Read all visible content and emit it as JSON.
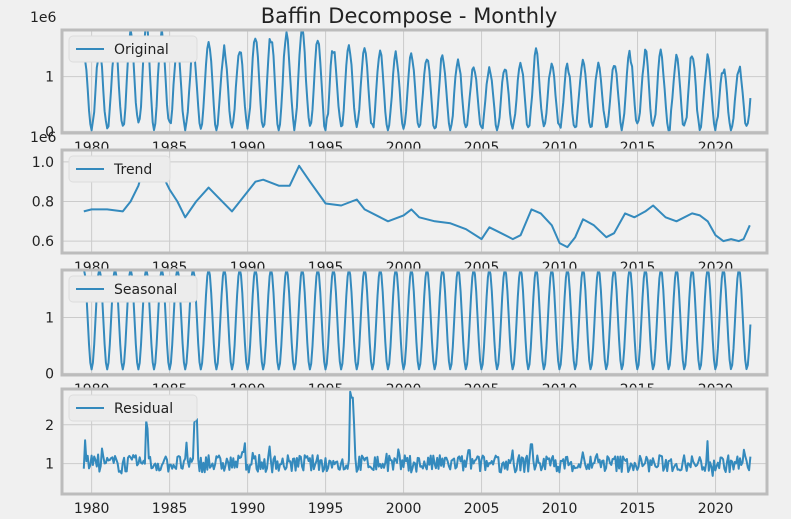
{
  "chart_data": {
    "type": "line",
    "title": "Baffin Decompose - Monthly",
    "colors": {
      "line": "#348ABD",
      "axes_bg": "#f0f0f0",
      "grid": "#cbcbcb",
      "frame": "#bcbcbc",
      "figure_bg": "#f0f0f0"
    },
    "x_ticks": [
      1980,
      1985,
      1990,
      1995,
      2000,
      2005,
      2010,
      2015,
      2020
    ],
    "x_tick_labels": [
      "1980",
      "1985",
      "1990",
      "1995",
      "2000",
      "2005",
      "2010",
      "2015",
      "2020"
    ],
    "xlim": [
      1978.1,
      2023.3
    ],
    "panels": [
      {
        "name": "original",
        "legend": "Original",
        "offset_label": "1e6",
        "ylim": [
          -0.03,
          1.85
        ],
        "y_ticks": [
          0,
          1
        ],
        "y_tick_labels": [
          "0",
          "1"
        ],
        "generator": "seasonal",
        "start": 1979.5,
        "end": 2022.3,
        "step": 0.0833,
        "trend_keys": [
          [
            1979.5,
            0.75
          ],
          [
            1981,
            0.76
          ],
          [
            1983,
            0.98
          ],
          [
            1984,
            1.02
          ],
          [
            1985,
            0.86
          ],
          [
            1986,
            0.72
          ],
          [
            1987.5,
            0.87
          ],
          [
            1989,
            0.75
          ],
          [
            1990.5,
            0.9
          ],
          [
            1992,
            0.88
          ],
          [
            1993.3,
            0.98
          ],
          [
            1995,
            0.79
          ],
          [
            1997,
            0.81
          ],
          [
            1999,
            0.7
          ],
          [
            2000.5,
            0.75
          ],
          [
            2003,
            0.69
          ],
          [
            2005,
            0.61
          ],
          [
            2007,
            0.61
          ],
          [
            2008.5,
            0.75
          ],
          [
            2010,
            0.59
          ],
          [
            2011.5,
            0.7
          ],
          [
            2013,
            0.62
          ],
          [
            2014.2,
            0.73
          ],
          [
            2016,
            0.76
          ],
          [
            2017,
            0.7
          ],
          [
            2018.5,
            0.73
          ],
          [
            2019.5,
            0.69
          ],
          [
            2020.5,
            0.6
          ],
          [
            2021.5,
            0.6
          ],
          [
            2022.3,
            0.68
          ]
        ],
        "amplitude": 1.25
      },
      {
        "name": "trend",
        "legend": "Trend",
        "offset_label": "1e6",
        "ylim": [
          0.54,
          1.06
        ],
        "y_ticks": [
          0.6,
          0.8,
          1.0
        ],
        "y_tick_labels": [
          "0.6",
          "0.8",
          "1.0"
        ],
        "generator": "keys",
        "points": [
          [
            1979.5,
            0.75
          ],
          [
            1980,
            0.76
          ],
          [
            1981,
            0.76
          ],
          [
            1982,
            0.75
          ],
          [
            1982.5,
            0.8
          ],
          [
            1983,
            0.88
          ],
          [
            1983.5,
            1.02
          ],
          [
            1984,
            1.02
          ],
          [
            1985,
            0.86
          ],
          [
            1985.5,
            0.8
          ],
          [
            1986,
            0.72
          ],
          [
            1986.7,
            0.8
          ],
          [
            1987.5,
            0.87
          ],
          [
            1988,
            0.83
          ],
          [
            1989,
            0.75
          ],
          [
            1989.5,
            0.8
          ],
          [
            1990.5,
            0.9
          ],
          [
            1991,
            0.91
          ],
          [
            1992,
            0.88
          ],
          [
            1992.7,
            0.88
          ],
          [
            1993.3,
            0.98
          ],
          [
            1994,
            0.9
          ],
          [
            1995,
            0.79
          ],
          [
            1996,
            0.78
          ],
          [
            1997,
            0.81
          ],
          [
            1997.5,
            0.76
          ],
          [
            1998.5,
            0.72
          ],
          [
            1999,
            0.7
          ],
          [
            2000,
            0.73
          ],
          [
            2000.5,
            0.76
          ],
          [
            2001,
            0.72
          ],
          [
            2002,
            0.7
          ],
          [
            2003,
            0.69
          ],
          [
            2004,
            0.66
          ],
          [
            2005,
            0.61
          ],
          [
            2005.5,
            0.67
          ],
          [
            2006,
            0.65
          ],
          [
            2007,
            0.61
          ],
          [
            2007.5,
            0.63
          ],
          [
            2008.2,
            0.76
          ],
          [
            2008.8,
            0.74
          ],
          [
            2009.5,
            0.68
          ],
          [
            2010,
            0.59
          ],
          [
            2010.5,
            0.57
          ],
          [
            2011,
            0.62
          ],
          [
            2011.5,
            0.71
          ],
          [
            2012.2,
            0.68
          ],
          [
            2013,
            0.62
          ],
          [
            2013.5,
            0.64
          ],
          [
            2014.2,
            0.74
          ],
          [
            2014.8,
            0.72
          ],
          [
            2015.5,
            0.75
          ],
          [
            2016,
            0.78
          ],
          [
            2016.8,
            0.72
          ],
          [
            2017.5,
            0.7
          ],
          [
            2018.5,
            0.74
          ],
          [
            2019,
            0.73
          ],
          [
            2019.5,
            0.7
          ],
          [
            2020,
            0.63
          ],
          [
            2020.5,
            0.6
          ],
          [
            2021,
            0.61
          ],
          [
            2021.5,
            0.6
          ],
          [
            2021.8,
            0.61
          ],
          [
            2022.2,
            0.68
          ]
        ]
      },
      {
        "name": "seasonal",
        "legend": "Seasonal",
        "offset_label": "",
        "ylim": [
          -0.03,
          1.85
        ],
        "y_ticks": [
          0,
          1
        ],
        "y_tick_labels": [
          "0",
          "1"
        ],
        "generator": "periodic",
        "start": 1979.5,
        "end": 2022.3,
        "step": 0.0833,
        "mean": 0.97,
        "half_range": 0.9
      },
      {
        "name": "residual",
        "legend": "Residual",
        "offset_label": "",
        "ylim": [
          0.22,
          2.92
        ],
        "y_ticks": [
          1,
          2
        ],
        "y_tick_labels": [
          "1",
          "2"
        ],
        "generator": "noise",
        "start": 1979.5,
        "end": 2022.3,
        "step": 0.0833,
        "base": 1.0,
        "spikes": [
          [
            1979.6,
            1.6
          ],
          [
            1983.5,
            2.1
          ],
          [
            1983.6,
            1.9
          ],
          [
            1986.6,
            2.05
          ],
          [
            1986.7,
            2.15
          ],
          [
            1989.7,
            1.3
          ],
          [
            1996.6,
            2.85
          ],
          [
            1996.7,
            2.7
          ],
          [
            1996.8,
            2.0
          ],
          [
            2004.2,
            1.35
          ],
          [
            2008.2,
            1.5
          ]
        ]
      }
    ]
  }
}
